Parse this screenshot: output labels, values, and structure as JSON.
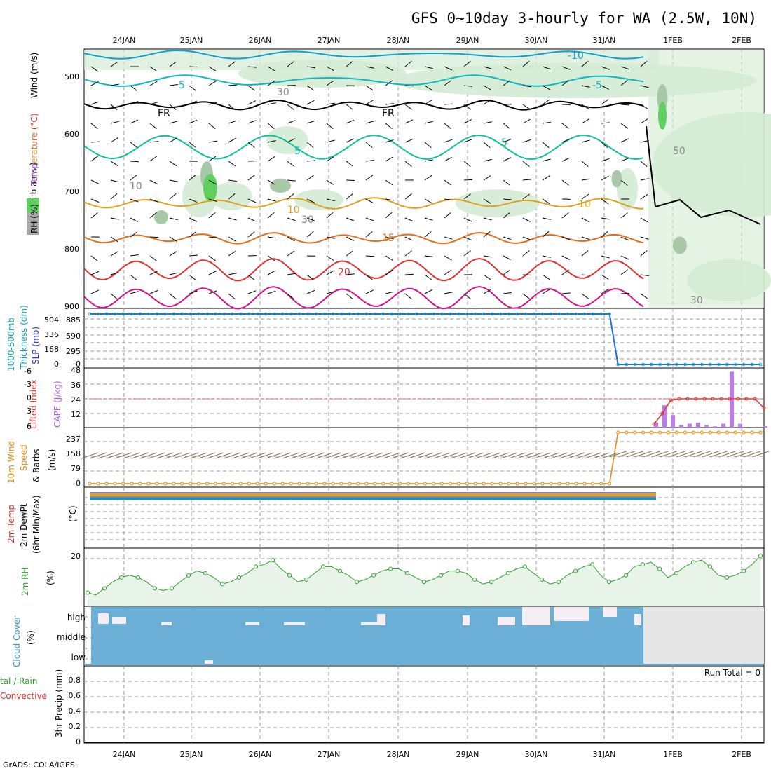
{
  "title": "GFS 0~10day 3-hourly for WA (2.5W, 10N)",
  "footer": "GrADS: COLA/IGES",
  "run_total": "Run Total = 0",
  "dates": [
    "24JAN",
    "25JAN",
    "26JAN",
    "27JAN",
    "28JAN",
    "29JAN",
    "30JAN",
    "31JAN",
    "1FEB",
    "2FEB"
  ],
  "colors": {
    "rh_fill": "#d4ebd4",
    "rh_dark": "#5fcf5f",
    "cloud": "#6baed6",
    "cloud_light": "#e6e6e6",
    "slp_line": "#1f6fd6",
    "cape_bar": "#c07af0",
    "lifted": "#e03030",
    "wind10": "#e08a10",
    "rh2m": "#2ca02c",
    "barb": "#8b7355"
  },
  "panels": {
    "upper": {
      "ylabel_rh": "RH (%)",
      "ylabel_temp": "Temperature (°C)",
      "ylabel_wind": "Wind (m/s)",
      "ylabel_p": "( m i l l i b a r s )",
      "y_ticks": [
        "500",
        "600",
        "700",
        "800",
        "900"
      ],
      "contour_labels": [
        "-10",
        "5",
        "-5",
        "FR",
        "FR",
        "5",
        "5",
        "10",
        "10",
        "15",
        "20",
        "30",
        "30",
        "10",
        "50",
        "30"
      ]
    },
    "thick": {
      "ylabel": "1000-500mb Thickness (dm)",
      "ylabel2": "SLP (mb)",
      "left_ticks": [
        "504",
        "336",
        "168",
        "0"
      ],
      "right_ticks": [
        "885",
        "590",
        "295",
        "0"
      ]
    },
    "cape": {
      "ylabel_li": "Lifted Index",
      "ylabel_cape": "CAPE (J/kg)",
      "li_ticks": [
        "-6",
        "-3",
        "0",
        "3",
        "6"
      ],
      "cape_ticks": [
        "48",
        "36",
        "24",
        "12"
      ]
    },
    "wind10": {
      "ylabel": "10m Wind",
      "ylabel2": "Speed",
      "ylabel3": "& Barbs",
      "unit": "(m/s)",
      "ticks": [
        "237",
        "158",
        "79",
        "0"
      ]
    },
    "temp2m": {
      "ylabel": "2m Temp",
      "ylabel2": "2m DewPt",
      "ylabel3": "(6hr Min/Max)",
      "unit": "(°C)"
    },
    "rh2m": {
      "ylabel": "2m RH",
      "unit": "(%)",
      "ticks": [
        "20"
      ]
    },
    "cloud": {
      "ylabel": "Cloud Cover",
      "unit": "(%)",
      "levels": [
        "high",
        "middle",
        "low"
      ]
    },
    "precip": {
      "ylabel1": "Total / Rain",
      "ylabel2": "Convective",
      "ylabel3": "3hr Precip (mm)",
      "ticks": [
        "0.8",
        "0.6",
        "0.4",
        "0.2",
        "0"
      ]
    }
  },
  "chart_data": [
    {
      "type": "line",
      "title": "2m RH",
      "ylabel": "(%)",
      "x_start": "24JAN 00Z",
      "x_step_hours": 3,
      "values": [
        4,
        3,
        6,
        9,
        11,
        12,
        11,
        9,
        6,
        5,
        6,
        9,
        12,
        14,
        13,
        11,
        8,
        9,
        11,
        13,
        16,
        17,
        19,
        15,
        12,
        9,
        10,
        13,
        16,
        16,
        14,
        12,
        9,
        10,
        12,
        14,
        15,
        15,
        13,
        11,
        9,
        10,
        12,
        14,
        14,
        13,
        10,
        8,
        9,
        11,
        13,
        15,
        16,
        13,
        10,
        8,
        9,
        12,
        14,
        16,
        17,
        12,
        9,
        10,
        12,
        16,
        17,
        18,
        15,
        11,
        13,
        16,
        18,
        19,
        16,
        12,
        11,
        12,
        14,
        17,
        21
      ]
    },
    {
      "type": "line",
      "title": "SLP",
      "ylabel": "SLP (mb)",
      "series": [
        {
          "name": "SLP (mb)",
          "x_start_hours": 0,
          "step_hours": 3,
          "values": [
            885,
            885,
            885,
            885,
            885,
            885,
            885,
            885,
            885,
            885,
            885,
            885,
            885,
            885,
            885,
            885,
            885,
            885,
            885,
            885,
            885,
            885,
            885,
            885,
            885,
            885,
            885,
            885,
            885,
            885,
            885,
            885,
            885,
            885,
            885,
            885,
            885,
            885,
            885,
            885,
            885,
            885,
            885,
            885,
            885,
            885,
            885,
            885,
            885,
            885,
            885,
            885,
            885,
            885,
            885,
            885,
            885,
            885,
            885,
            885,
            885,
            885,
            885,
            0,
            0,
            0,
            0,
            0,
            0,
            0,
            0,
            0,
            0,
            0,
            0,
            0,
            0,
            0,
            0,
            0,
            0
          ]
        }
      ]
    },
    {
      "type": "bar",
      "title": "CAPE",
      "ylabel": "CAPE (J/kg)",
      "x_hours": [
        195,
        198,
        201,
        204,
        207,
        210,
        213,
        216,
        219,
        222,
        225,
        228,
        231,
        234
      ],
      "values": [
        4,
        18,
        10,
        2,
        3,
        4,
        2,
        1,
        3,
        45,
        3,
        0,
        0,
        1
      ]
    },
    {
      "type": "line",
      "title": "Lifted Index",
      "ylabel": "Lifted Index",
      "x_hours": [
        195,
        198,
        201,
        204,
        207,
        210,
        213,
        216,
        219,
        222,
        225,
        228,
        231,
        234
      ],
      "values": [
        6,
        3,
        1,
        0,
        0,
        0,
        0,
        0,
        0,
        0,
        0,
        0,
        0,
        1
      ]
    },
    {
      "type": "line",
      "title": "10m Wind Speed",
      "ylabel": "(m/s)",
      "values_before_1feb": 0,
      "values_after_1feb": 237
    },
    {
      "type": "area",
      "title": "Cloud Cover",
      "ylabel": "(%)",
      "categories": [
        "high",
        "middle",
        "low"
      ],
      "values": [
        85,
        100,
        100
      ]
    },
    {
      "type": "line",
      "title": "3hr Precip",
      "ylabel": "3hr Precip (mm)",
      "ylim": [
        0,
        0.9
      ],
      "values": [
        0
      ]
    }
  ]
}
